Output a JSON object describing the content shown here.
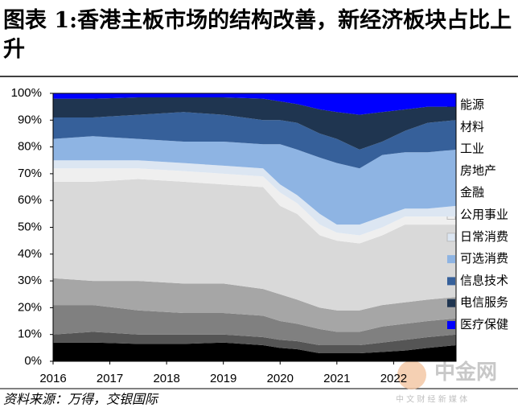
{
  "chart_data": {
    "type": "stacked_area",
    "title": "图表 1:香港主板市场的结构改善，新经济板块占比上升",
    "source": "资料来源：万得，交银国际",
    "watermark": "中金网",
    "watermark_sub": "中 文 财 经 新 媒 体",
    "x": [
      2016.0,
      2016.7,
      2017.5,
      2018.3,
      2019.0,
      2019.7,
      2020.0,
      2020.3,
      2020.7,
      2021.0,
      2021.4,
      2021.8,
      2022.2,
      2022.6,
      2023.1
    ],
    "xlim": [
      2016,
      2023.1
    ],
    "xticks": [
      2016,
      2017,
      2018,
      2019,
      2020,
      2021,
      2022
    ],
    "ylim": [
      0,
      100
    ],
    "yticks": [
      {
        "value": 0,
        "label": "0%"
      },
      {
        "value": 10,
        "label": "10%"
      },
      {
        "value": 20,
        "label": "20%"
      },
      {
        "value": 30,
        "label": "30%"
      },
      {
        "value": 40,
        "label": "40%"
      },
      {
        "value": 50,
        "label": "50%"
      },
      {
        "value": 60,
        "label": "60%"
      },
      {
        "value": 70,
        "label": "70%"
      },
      {
        "value": 80,
        "label": "80%"
      },
      {
        "value": 90,
        "label": "90%"
      },
      {
        "value": 100,
        "label": "100%"
      }
    ],
    "series": [
      {
        "name": "能源",
        "color": "#000000",
        "values": [
          7,
          7,
          6.5,
          6.5,
          7,
          6,
          5,
          4.5,
          3,
          3,
          3,
          3.5,
          4,
          5,
          6
        ]
      },
      {
        "name": "材料",
        "color": "#555555",
        "values": [
          3,
          4,
          3.5,
          3.5,
          3,
          3,
          3,
          3,
          3,
          3,
          3,
          3.5,
          4,
          4,
          4
        ]
      },
      {
        "name": "工业",
        "color": "#808080",
        "values": [
          11,
          10,
          9,
          8,
          8,
          8,
          7,
          6.5,
          6,
          5,
          5,
          6,
          6,
          6,
          6
        ]
      },
      {
        "name": "房地产",
        "color": "#a6a6a6",
        "values": [
          10,
          9,
          11,
          11,
          11,
          10,
          10,
          9,
          8,
          8,
          8,
          8,
          8,
          8,
          8
        ]
      },
      {
        "name": "金融",
        "color": "#d9d9d9",
        "values": [
          36,
          37,
          38,
          38,
          37,
          38,
          33,
          32,
          27,
          26,
          25,
          26,
          29,
          28,
          27
        ]
      },
      {
        "name": "公用事业",
        "color": "#efefef",
        "values": [
          5,
          5,
          4,
          4,
          4,
          4,
          5,
          4,
          4,
          3,
          3,
          3,
          3,
          3,
          3
        ]
      },
      {
        "name": "日常消费",
        "color": "#dce6f2",
        "values": [
          3,
          3,
          3,
          3,
          3,
          3,
          3,
          3,
          4,
          3,
          4,
          4,
          3,
          3,
          4
        ]
      },
      {
        "name": "可选消费",
        "color": "#8eb4e3",
        "values": [
          8,
          9,
          8,
          8,
          9,
          9,
          15,
          17,
          21,
          23,
          21,
          23,
          21,
          21,
          21
        ]
      },
      {
        "name": "信息技术",
        "color": "#36609a",
        "values": [
          8,
          7,
          9,
          11,
          10,
          9,
          9,
          10,
          9,
          9,
          7,
          5,
          8,
          11,
          11
        ]
      },
      {
        "name": "电信服务",
        "color": "#1f3550",
        "values": [
          7,
          7,
          6.5,
          5.5,
          6.5,
          8,
          7,
          7,
          9,
          10,
          13,
          11,
          8,
          6,
          5
        ]
      },
      {
        "name": "医疗保健",
        "color": "#0000ff",
        "values": [
          2,
          2,
          1.5,
          1.5,
          1.5,
          2,
          3,
          4,
          6,
          7,
          8,
          7,
          6,
          5,
          5
        ]
      }
    ]
  }
}
